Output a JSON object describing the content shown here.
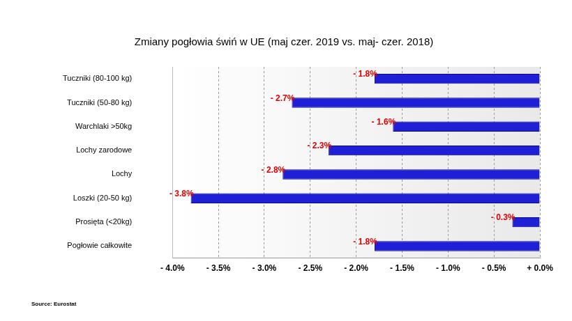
{
  "chart_data": {
    "type": "bar",
    "orientation": "horizontal",
    "title": "Zmiany pogłowia świń w UE (maj czer. 2019 vs. maj- czer. 2018)",
    "source": "Source: Eurostat",
    "categories": [
      "Tuczniki (80-100 kg)",
      "Tuczniki (50-80 kg)",
      "Warchlaki >50kg",
      "Lochy zarodowe",
      "Lochy",
      "Loszki (20-50 kg)",
      "Prosięta (<20kg)",
      "Pogłowie całkowite"
    ],
    "values": [
      -1.8,
      -2.7,
      -1.6,
      -2.3,
      -2.8,
      -3.8,
      -0.3,
      -1.8
    ],
    "value_labels": [
      "- 1.8%",
      "- 2.7%",
      "- 1.6%",
      "- 2.3%",
      "- 2.8%",
      "- 3.8%",
      "- 0.3%",
      "- 1.8%"
    ],
    "data_labels": true,
    "color": "#1f1fd6",
    "xlim": [
      -4.0,
      0.0
    ],
    "xticks": [
      {
        "value": -4.0,
        "label": "- 4.0%"
      },
      {
        "value": -3.5,
        "label": "- 3.5%"
      },
      {
        "value": -3.0,
        "label": "- 3.0%"
      },
      {
        "value": -2.5,
        "label": "- 2.5%"
      },
      {
        "value": -2.0,
        "label": "- 2.0%"
      },
      {
        "value": -1.5,
        "label": "- 1.5%"
      },
      {
        "value": -1.0,
        "label": "- 1.0%"
      },
      {
        "value": -0.5,
        "label": "- 0.5%"
      },
      {
        "value": 0.0,
        "label": "+ 0.0%"
      }
    ],
    "grid": true
  }
}
